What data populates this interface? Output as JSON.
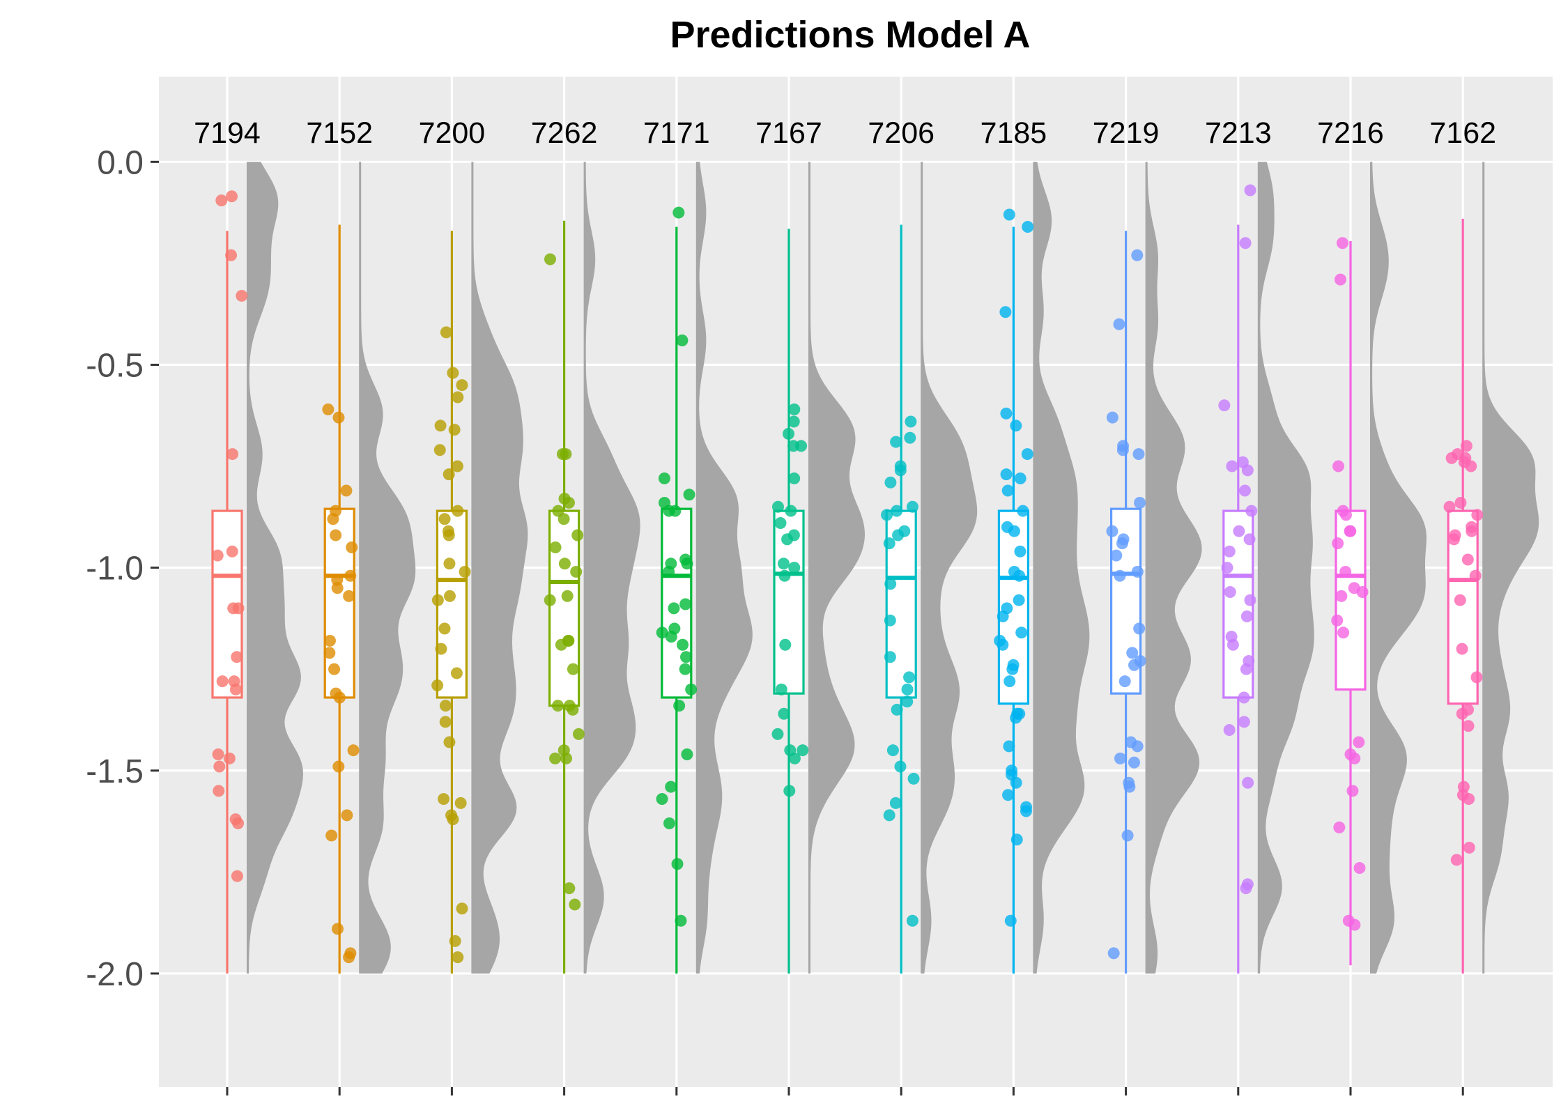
{
  "chart_data": {
    "type": "raincloud",
    "title": "Predictions Model A",
    "xlabel": "",
    "ylabel": "",
    "ylim": [
      -2.28,
      0.21
    ],
    "y_ticks": [
      "0.0",
      "-0.5",
      "-1.0",
      "-1.5",
      "-2.0"
    ],
    "y_tick_values": [
      0.0,
      -0.5,
      -1.0,
      -1.5,
      -2.0
    ],
    "grid": true,
    "legend": "none",
    "panel_color": "#ebebeb",
    "density_color": "#a6a6a6",
    "categories": [
      "7194",
      "7152",
      "7200",
      "7262",
      "7171",
      "7167",
      "7206",
      "7185",
      "7219",
      "7213",
      "7216",
      "7162"
    ],
    "colors": [
      "#F8766D",
      "#DE8C00",
      "#B79F00",
      "#7CAE00",
      "#00BA38",
      "#00C08B",
      "#00BFC4",
      "#00B4F0",
      "#619CFF",
      "#C77CFF",
      "#F564E3",
      "#FF64B0"
    ],
    "boxes": [
      {
        "min": -2.0,
        "q1": -1.32,
        "median": -1.02,
        "q3": -0.86,
        "max": -0.17
      },
      {
        "min": -2.0,
        "q1": -1.32,
        "median": -1.02,
        "q3": -0.855,
        "max": -0.155
      },
      {
        "min": -2.0,
        "q1": -1.32,
        "median": -1.03,
        "q3": -0.86,
        "max": -0.17
      },
      {
        "min": -2.0,
        "q1": -1.34,
        "median": -1.035,
        "q3": -0.86,
        "max": -0.145
      },
      {
        "min": -2.0,
        "q1": -1.32,
        "median": -1.02,
        "q3": -0.855,
        "max": -0.16
      },
      {
        "min": -2.0,
        "q1": -1.31,
        "median": -1.015,
        "q3": -0.86,
        "max": -0.165
      },
      {
        "min": -2.0,
        "q1": -1.32,
        "median": -1.025,
        "q3": -0.86,
        "max": -0.155
      },
      {
        "min": -2.0,
        "q1": -1.335,
        "median": -1.025,
        "q3": -0.86,
        "max": -0.16
      },
      {
        "min": -2.0,
        "q1": -1.31,
        "median": -1.015,
        "q3": -0.855,
        "max": -0.17
      },
      {
        "min": -2.0,
        "q1": -1.32,
        "median": -1.02,
        "q3": -0.86,
        "max": -0.155
      },
      {
        "min": -1.98,
        "q1": -1.3,
        "median": -1.02,
        "q3": -0.86,
        "max": -0.195
      },
      {
        "min": -2.0,
        "q1": -1.335,
        "median": -1.03,
        "q3": -0.86,
        "max": -0.14
      }
    ],
    "points": [
      [
        -0.085,
        -0.095,
        -0.23,
        -0.33,
        -0.72,
        -0.96,
        -0.97,
        -1.1,
        -1.1,
        -1.22,
        -1.28,
        -1.28,
        -1.3,
        -1.46,
        -1.47,
        -1.49,
        -1.55,
        -1.62,
        -1.63,
        -1.76
      ],
      [
        -0.61,
        -0.63,
        -0.81,
        -0.86,
        -0.88,
        -0.92,
        -0.95,
        -1.02,
        -1.03,
        -1.05,
        -1.07,
        -1.18,
        -1.21,
        -1.25,
        -1.31,
        -1.32,
        -1.45,
        -1.49,
        -1.61,
        -1.66,
        -1.89,
        -1.95,
        -1.96
      ],
      [
        -0.42,
        -0.52,
        -0.55,
        -0.58,
        -0.65,
        -0.66,
        -0.71,
        -0.75,
        -0.77,
        -0.86,
        -0.88,
        -0.91,
        -0.92,
        -0.99,
        -1.01,
        -1.07,
        -1.08,
        -1.15,
        -1.2,
        -1.26,
        -1.29,
        -1.34,
        -1.38,
        -1.43,
        -1.57,
        -1.58,
        -1.61,
        -1.62,
        -1.84,
        -1.92,
        -1.96
      ],
      [
        -0.24,
        -0.72,
        -0.72,
        -0.83,
        -0.84,
        -0.86,
        -0.88,
        -0.92,
        -0.95,
        -0.99,
        -1.01,
        -1.07,
        -1.08,
        -1.18,
        -1.18,
        -1.19,
        -1.25,
        -1.34,
        -1.34,
        -1.35,
        -1.41,
        -1.45,
        -1.47,
        -1.47,
        -1.79,
        -1.83
      ],
      [
        -0.125,
        -0.44,
        -0.78,
        -0.82,
        -0.84,
        -0.86,
        -0.86,
        -0.98,
        -0.99,
        -0.99,
        -1.01,
        -1.09,
        -1.1,
        -1.15,
        -1.16,
        -1.17,
        -1.19,
        -1.22,
        -1.25,
        -1.3,
        -1.34,
        -1.46,
        -1.54,
        -1.57,
        -1.63,
        -1.73,
        -1.87
      ],
      [
        -0.61,
        -0.64,
        -0.67,
        -0.7,
        -0.7,
        -0.78,
        -0.85,
        -0.86,
        -0.89,
        -0.92,
        -0.93,
        -0.99,
        -1.0,
        -1.02,
        -1.19,
        -1.3,
        -1.36,
        -1.41,
        -1.45,
        -1.45,
        -1.47,
        -1.55
      ],
      [
        -0.64,
        -0.68,
        -0.69,
        -0.75,
        -0.76,
        -0.79,
        -0.85,
        -0.86,
        -0.87,
        -0.91,
        -0.92,
        -0.94,
        -1.04,
        -1.13,
        -1.22,
        -1.27,
        -1.3,
        -1.33,
        -1.35,
        -1.45,
        -1.49,
        -1.52,
        -1.58,
        -1.61,
        -1.87
      ],
      [
        -0.13,
        -0.16,
        -0.37,
        -0.62,
        -0.65,
        -0.72,
        -0.77,
        -0.78,
        -0.81,
        -0.86,
        -0.9,
        -0.91,
        -0.96,
        -1.01,
        -1.02,
        -1.08,
        -1.1,
        -1.12,
        -1.16,
        -1.18,
        -1.19,
        -1.24,
        -1.25,
        -1.28,
        -1.36,
        -1.36,
        -1.37,
        -1.44,
        -1.5,
        -1.51,
        -1.53,
        -1.56,
        -1.59,
        -1.6,
        -1.67,
        -1.87
      ],
      [
        -0.23,
        -0.4,
        -0.63,
        -0.7,
        -0.71,
        -0.72,
        -0.84,
        -0.91,
        -0.93,
        -0.94,
        -0.97,
        -1.01,
        -1.02,
        -1.15,
        -1.21,
        -1.23,
        -1.24,
        -1.28,
        -1.43,
        -1.44,
        -1.47,
        -1.48,
        -1.53,
        -1.54,
        -1.66,
        -1.95
      ],
      [
        -0.07,
        -0.2,
        -0.6,
        -0.74,
        -0.75,
        -0.76,
        -0.81,
        -0.86,
        -0.91,
        -0.93,
        -0.96,
        -1.0,
        -1.06,
        -1.08,
        -1.12,
        -1.17,
        -1.19,
        -1.23,
        -1.25,
        -1.32,
        -1.38,
        -1.4,
        -1.53,
        -1.78,
        -1.79
      ],
      [
        -0.2,
        -0.29,
        -0.75,
        -0.86,
        -0.87,
        -0.91,
        -0.91,
        -0.94,
        -1.01,
        -1.05,
        -1.06,
        -1.07,
        -1.13,
        -1.16,
        -1.43,
        -1.46,
        -1.47,
        -1.55,
        -1.64,
        -1.74,
        -1.87,
        -1.88
      ],
      [
        -0.7,
        -0.72,
        -0.73,
        -0.73,
        -0.74,
        -0.75,
        -0.84,
        -0.85,
        -0.87,
        -0.9,
        -0.91,
        -0.92,
        -0.93,
        -0.98,
        -1.02,
        -1.08,
        -1.2,
        -1.27,
        -1.35,
        -1.36,
        -1.39,
        -1.54,
        -1.56,
        -1.57,
        -1.69,
        -1.72
      ]
    ]
  }
}
